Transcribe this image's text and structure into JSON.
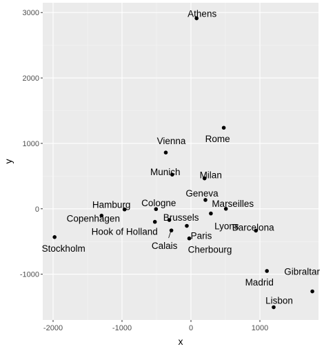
{
  "colors": {
    "panel_background": "#ebebeb",
    "grid_major": "#ffffff",
    "grid_minor": "#f4f4f4",
    "point": "#000000",
    "tick_text": "#4d4d4d",
    "tick_mark": "#333333"
  },
  "chart_data": {
    "type": "scatter",
    "title": "",
    "xlabel": "x",
    "ylabel": "y",
    "xlim": [
      -2150,
      1850
    ],
    "ylim": [
      -1700,
      3150
    ],
    "grid": true,
    "legend": "none",
    "x_ticks": [
      {
        "value": -2000,
        "label": "-2000"
      },
      {
        "value": -1000,
        "label": "-1000"
      },
      {
        "value": 0,
        "label": "0"
      },
      {
        "value": 1000,
        "label": "1000"
      }
    ],
    "y_ticks": [
      {
        "value": -1000,
        "label": "-1000"
      },
      {
        "value": 0,
        "label": "0"
      },
      {
        "value": 1000,
        "label": "1000"
      },
      {
        "value": 2000,
        "label": "2000"
      },
      {
        "value": 3000,
        "label": "3000"
      }
    ],
    "points": [
      {
        "label": "Athens",
        "x": 82,
        "y": 2912
      },
      {
        "label": "Barcelona",
        "x": 942,
        "y": -334
      },
      {
        "label": "Brussels",
        "x": -314,
        "y": -172
      },
      {
        "label": "Calais",
        "x": -284,
        "y": -331
      },
      {
        "label": "Cherbourg",
        "x": -25,
        "y": -453
      },
      {
        "label": "Cologne",
        "x": -507,
        "y": -5
      },
      {
        "label": "Copenhagen",
        "x": -1297,
        "y": -105
      },
      {
        "label": "Geneva",
        "x": 210,
        "y": 135
      },
      {
        "label": "Gibraltar",
        "x": 1761,
        "y": -1263
      },
      {
        "label": "Hamburg",
        "x": -963,
        "y": -10
      },
      {
        "label": "Hook of Holland",
        "x": -523,
        "y": -200
      },
      {
        "label": "Lisbon",
        "x": 1200,
        "y": -1505
      },
      {
        "label": "Lyons",
        "x": 289,
        "y": -72
      },
      {
        "label": "Madrid",
        "x": 1102,
        "y": -951
      },
      {
        "label": "Marseilles",
        "x": 507,
        "y": 0
      },
      {
        "label": "Milan",
        "x": 197,
        "y": 465
      },
      {
        "label": "Munich",
        "x": -272,
        "y": 523
      },
      {
        "label": "Paris",
        "x": -60,
        "y": -261
      },
      {
        "label": "Rome",
        "x": 476,
        "y": 1239
      },
      {
        "label": "Stockholm",
        "x": -1978,
        "y": -433
      },
      {
        "label": "Vienna",
        "x": -365,
        "y": 860
      }
    ]
  }
}
